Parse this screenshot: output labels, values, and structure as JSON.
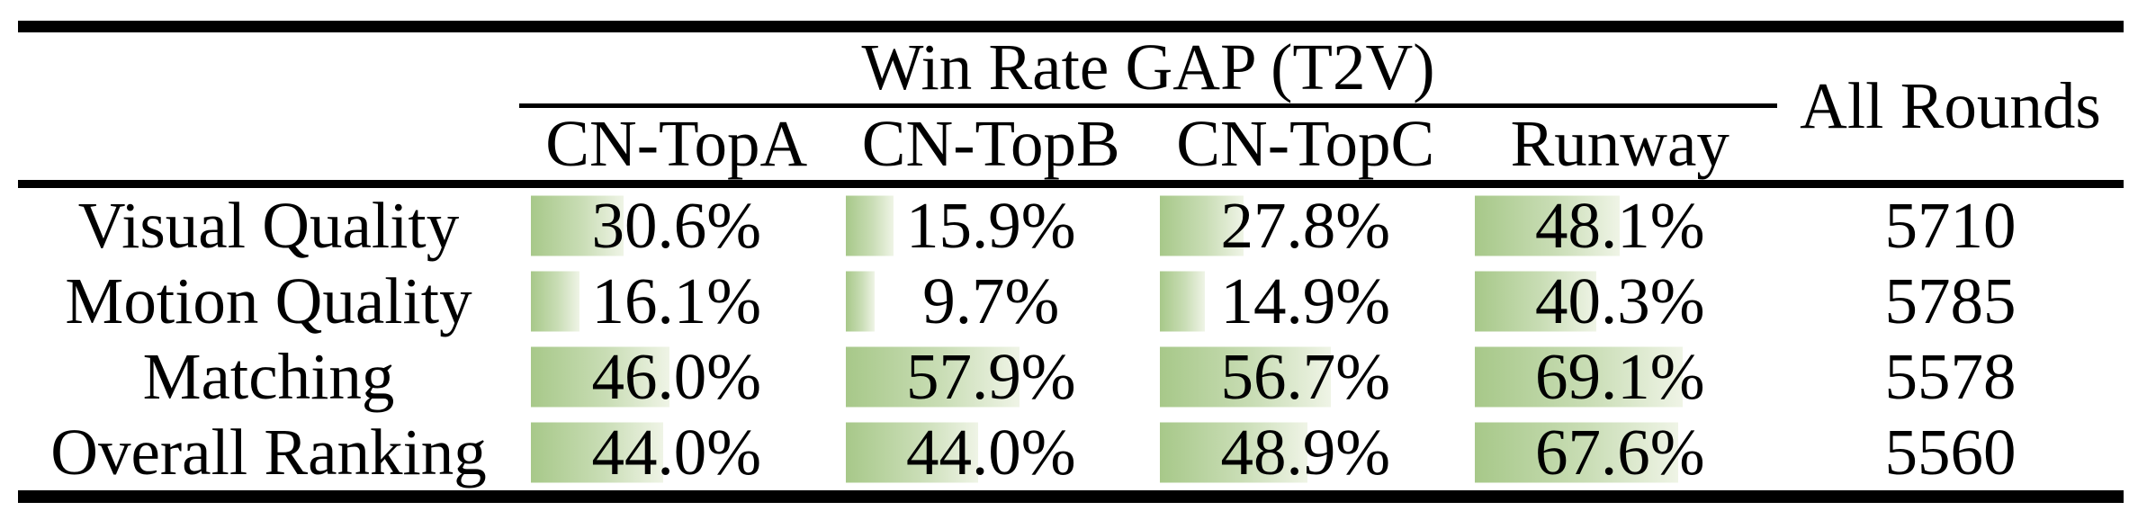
{
  "table": {
    "group_header": "Win Rate GAP (T2V)",
    "all_rounds_header": "All Rounds",
    "columns": [
      "CN-TopA",
      "CN-TopB",
      "CN-TopC",
      "Runway"
    ],
    "rows": [
      {
        "label": "Visual Quality",
        "values": [
          "30.6%",
          "15.9%",
          "27.8%",
          "48.1%"
        ],
        "all_rounds": "5710"
      },
      {
        "label": "Motion Quality",
        "values": [
          "16.1%",
          "9.7%",
          "14.9%",
          "40.3%"
        ],
        "all_rounds": "5785"
      },
      {
        "label": "Matching",
        "values": [
          "46.0%",
          "57.9%",
          "56.7%",
          "69.1%"
        ],
        "all_rounds": "5578"
      },
      {
        "label": "Overall Ranking",
        "values": [
          "44.0%",
          "44.0%",
          "48.9%",
          "67.6%"
        ],
        "all_rounds": "5560"
      }
    ],
    "bar_color_start": "#a7c889",
    "bar_color_end": "#eff4e6"
  }
}
